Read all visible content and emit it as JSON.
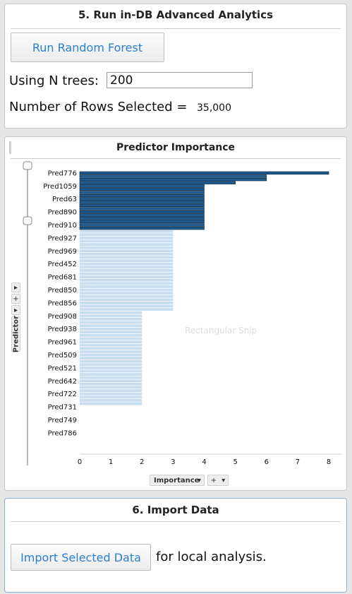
{
  "analytics_panel": {
    "title": "5. Run in-DB Advanced Analytics",
    "run_button_label": "Run Random Forest",
    "trees_label": "Using N trees:",
    "trees_value": "200",
    "rows_label": "Number of Rows Selected =",
    "rows_value": "35,000"
  },
  "chart_panel": {
    "title": "Predictor Importance",
    "watermark": "Rectangular Snip",
    "y_shelf_label": "Predictor",
    "x_shelf_label": "Importance",
    "shelf_plus": "+",
    "shelf_arrow": "▾",
    "shelf_arrow_right": "▸"
  },
  "chart_data": {
    "type": "bar",
    "orientation": "horizontal",
    "title": "Predictor Importance",
    "xlabel": "Importance",
    "ylabel": "Predictor",
    "xlim": [
      0,
      8
    ],
    "x_ticks": [
      "0",
      "1",
      "2",
      "3",
      "4",
      "5",
      "6",
      "7",
      "8"
    ],
    "labeled_categories": [
      "Pred776",
      "Pred1059",
      "Pred63",
      "Pred890",
      "Pred910",
      "Pred927",
      "Pred969",
      "Pred452",
      "Pred681",
      "Pred850",
      "Pred856",
      "Pred908",
      "Pred938",
      "Pred961",
      "Pred509",
      "Pred521",
      "Pred642",
      "Pred722",
      "Pred731",
      "Pred749",
      "Pred786"
    ],
    "values": [
      8,
      6,
      6,
      5,
      4,
      4,
      4,
      4,
      4,
      4,
      4,
      4,
      4,
      4,
      4,
      4,
      4,
      4,
      3,
      3,
      3,
      3,
      3,
      3,
      3,
      3,
      3,
      3,
      3,
      3,
      3,
      3,
      3,
      3,
      3,
      3,
      3,
      3,
      3,
      3,
      3,
      3,
      3,
      2,
      2,
      2,
      2,
      2,
      2,
      2,
      2,
      2,
      2,
      2,
      2,
      2,
      2,
      2,
      2,
      2,
      2,
      2,
      2,
      2,
      2,
      2,
      2,
      2,
      2,
      2,
      2,
      2
    ],
    "selected_count": 18,
    "colors": {
      "selected": "#1f5a8f",
      "selected_edge": "#0b2238",
      "unselected": "#c7ddf0"
    },
    "grid": false
  },
  "import_panel": {
    "title": "6. Import Data",
    "import_button_label": "Import Selected Data",
    "suffix_text": "for local analysis."
  }
}
